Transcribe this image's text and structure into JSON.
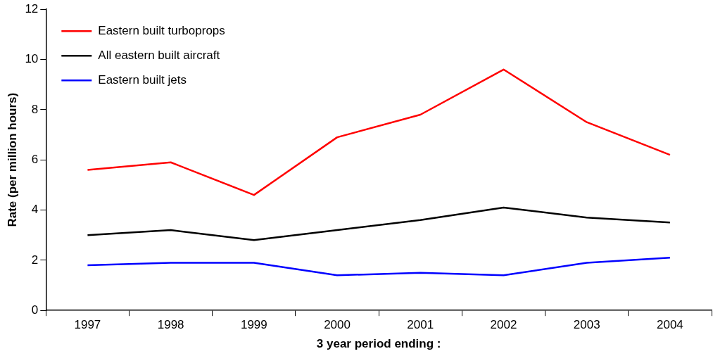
{
  "chart_data": {
    "type": "line",
    "xlabel": "3 year period ending :",
    "ylabel": "Rate (per million hours)",
    "categories": [
      "1997",
      "1998",
      "1999",
      "2000",
      "2001",
      "2002",
      "2003",
      "2004"
    ],
    "series": [
      {
        "name": "Eastern built turboprops",
        "color": "#ff0000",
        "values": [
          5.6,
          5.9,
          4.6,
          6.9,
          7.8,
          9.6,
          7.5,
          6.2
        ]
      },
      {
        "name": "All eastern built aircraft",
        "color": "#000000",
        "values": [
          3.0,
          3.2,
          2.8,
          3.2,
          3.6,
          4.1,
          3.7,
          3.5
        ]
      },
      {
        "name": "Eastern built jets",
        "color": "#0000ff",
        "values": [
          1.8,
          1.9,
          1.9,
          1.4,
          1.5,
          1.4,
          1.9,
          2.1
        ]
      }
    ],
    "ylim": [
      0,
      12
    ],
    "yticks": [
      0,
      2,
      4,
      6,
      8,
      10,
      12
    ],
    "grid": false,
    "legend": "top left",
    "marker": "none",
    "line_style": "solid"
  }
}
